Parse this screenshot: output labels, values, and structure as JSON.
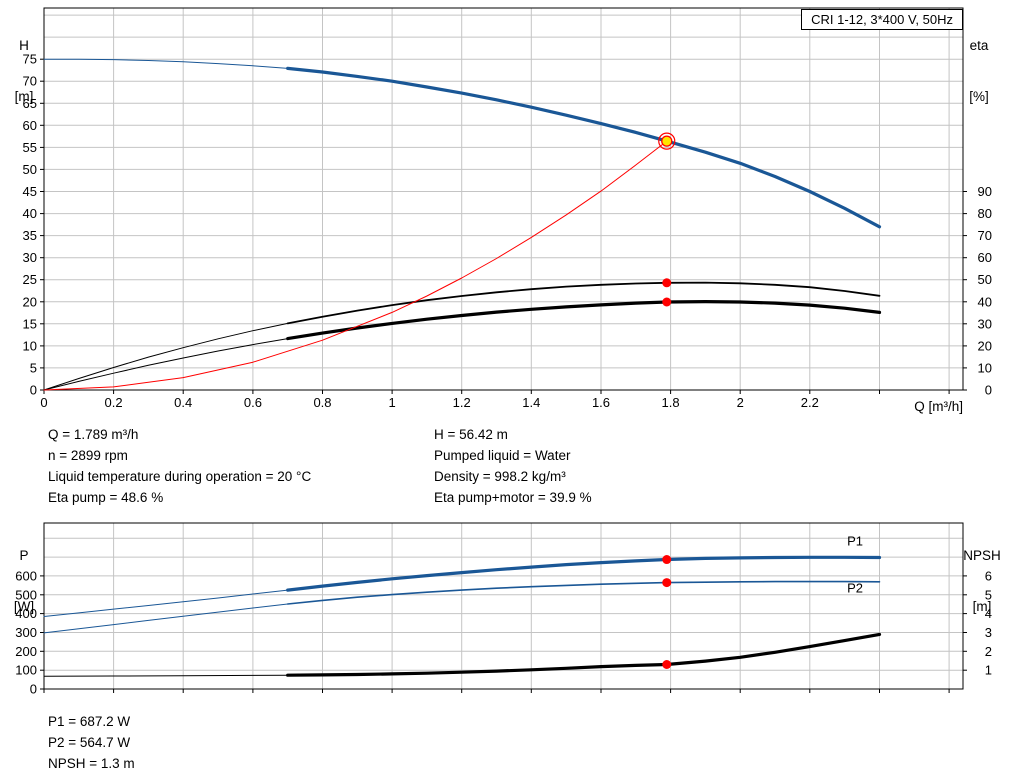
{
  "title_box": "CRI 1-12, 3*400 V, 50Hz",
  "colors": {
    "curve_blue": "#1a5796",
    "curve_black": "#000000",
    "curve_red": "#ff0000",
    "grid": "#c4c4c4",
    "marker_red": "#ff0000",
    "duty_yellow": "#ffe600"
  },
  "top_info": {
    "left": [
      "Q = 1.789 m³/h",
      "n = 2899 rpm",
      "Liquid temperature during operation = 20 °C",
      "Eta pump = 48.6 %"
    ],
    "right": [
      "H = 56.42 m",
      "Pumped liquid = Water",
      "Density = 998.2 kg/m³",
      "Eta pump+motor = 39.9 %"
    ]
  },
  "bottom_info": [
    "P1 = 687.2 W",
    "P2 = 564.7 W",
    "NPSH = 1.3 m"
  ],
  "chart_data": [
    {
      "type": "line",
      "title": "CRI 1-12, 3*400 V, 50Hz",
      "grid_color": "#c4c4c4",
      "x": {
        "label": "Q [m³/h]",
        "min": 0,
        "max": 2.64,
        "tick_step": 0.2,
        "labeled_min": 0,
        "labeled_max": 2.2
      },
      "y_left": {
        "name": "H",
        "unit": "[m]",
        "min": 0,
        "max": 86.6,
        "tick_step": 5,
        "labeled_min": 0,
        "labeled_max": 75
      },
      "y_right": {
        "name": "eta",
        "unit": "[%]",
        "min": 0,
        "max": 173.2,
        "tick_step": 10,
        "labeled_min": 0,
        "labeled_max": 90
      },
      "series": [
        {
          "name": "head-curve",
          "axis": "left",
          "color": "#1a5796",
          "split_q": 0.7,
          "width_thin": 1,
          "width_thick": 3.2,
          "points": [
            [
              0,
              75
            ],
            [
              0.1,
              75
            ],
            [
              0.2,
              74.9
            ],
            [
              0.3,
              74.7
            ],
            [
              0.4,
              74.4
            ],
            [
              0.5,
              74
            ],
            [
              0.6,
              73.5
            ],
            [
              0.7,
              72.9
            ],
            [
              0.8,
              72.1
            ],
            [
              0.9,
              71.1
            ],
            [
              1,
              70
            ],
            [
              1.1,
              68.7
            ],
            [
              1.2,
              67.3
            ],
            [
              1.3,
              65.8
            ],
            [
              1.4,
              64.1
            ],
            [
              1.5,
              62.3
            ],
            [
              1.6,
              60.4
            ],
            [
              1.7,
              58.4
            ],
            [
              1.789,
              56.42
            ],
            [
              1.9,
              53.9
            ],
            [
              2,
              51.4
            ],
            [
              2.1,
              48.4
            ],
            [
              2.2,
              45
            ],
            [
              2.3,
              41.2
            ],
            [
              2.4,
              37
            ]
          ]
        },
        {
          "name": "eta-pump-curve",
          "axis": "right",
          "color": "#000000",
          "split_q": 0.7,
          "width_thin": 1,
          "width_thick": 1.8,
          "points": [
            [
              0,
              0
            ],
            [
              0.1,
              5.2
            ],
            [
              0.2,
              10.2
            ],
            [
              0.3,
              14.9
            ],
            [
              0.4,
              19.2
            ],
            [
              0.5,
              23.2
            ],
            [
              0.6,
              26.9
            ],
            [
              0.7,
              30.2
            ],
            [
              0.8,
              33.2
            ],
            [
              0.9,
              36
            ],
            [
              1,
              38.5
            ],
            [
              1.1,
              40.7
            ],
            [
              1.2,
              42.6
            ],
            [
              1.3,
              44.3
            ],
            [
              1.4,
              45.7
            ],
            [
              1.5,
              46.9
            ],
            [
              1.6,
              47.7
            ],
            [
              1.7,
              48.3
            ],
            [
              1.789,
              48.6
            ],
            [
              1.9,
              48.7
            ],
            [
              2,
              48.4
            ],
            [
              2.1,
              47.7
            ],
            [
              2.2,
              46.6
            ],
            [
              2.3,
              44.9
            ],
            [
              2.4,
              42.7
            ]
          ]
        },
        {
          "name": "eta-pump-motor-curve",
          "axis": "right",
          "color": "#000000",
          "split_q": 0.7,
          "width_thin": 1,
          "width_thick": 3.2,
          "points": [
            [
              0,
              0
            ],
            [
              0.1,
              3.9
            ],
            [
              0.2,
              7.6
            ],
            [
              0.3,
              11.2
            ],
            [
              0.4,
              14.5
            ],
            [
              0.5,
              17.7
            ],
            [
              0.6,
              20.6
            ],
            [
              0.7,
              23.3
            ],
            [
              0.8,
              25.8
            ],
            [
              0.9,
              28.1
            ],
            [
              1,
              30.2
            ],
            [
              1.1,
              32.1
            ],
            [
              1.2,
              33.8
            ],
            [
              1.3,
              35.3
            ],
            [
              1.4,
              36.6
            ],
            [
              1.5,
              37.7
            ],
            [
              1.6,
              38.6
            ],
            [
              1.7,
              39.4
            ],
            [
              1.789,
              39.9
            ],
            [
              1.9,
              40.1
            ],
            [
              2,
              39.9
            ],
            [
              2.1,
              39.4
            ],
            [
              2.2,
              38.5
            ],
            [
              2.3,
              37.1
            ],
            [
              2.4,
              35.2
            ]
          ]
        },
        {
          "name": "system-curve",
          "axis": "left",
          "color": "#ff0000",
          "width": 1,
          "points": [
            [
              0,
              0
            ],
            [
              0.2,
              0.7
            ],
            [
              0.4,
              2.8
            ],
            [
              0.6,
              6.3
            ],
            [
              0.8,
              11.3
            ],
            [
              1,
              17.6
            ],
            [
              1.1,
              21.3
            ],
            [
              1.2,
              25.4
            ],
            [
              1.3,
              29.8
            ],
            [
              1.4,
              34.6
            ],
            [
              1.5,
              39.7
            ],
            [
              1.6,
              45.1
            ],
            [
              1.7,
              51
            ],
            [
              1.789,
              56.42
            ]
          ]
        }
      ],
      "markers": [
        {
          "style": "duty",
          "q": 1.789,
          "value": 56.42,
          "axis": "left"
        },
        {
          "style": "dot",
          "q": 1.789,
          "value": 48.6,
          "axis": "right"
        },
        {
          "style": "dot",
          "q": 1.789,
          "value": 39.9,
          "axis": "right"
        }
      ],
      "labels": []
    },
    {
      "type": "line",
      "title": "",
      "grid_color": "#c4c4c4",
      "x": {
        "label": "",
        "min": 0,
        "max": 2.64,
        "tick_step": 0.2,
        "labeled_min": 0,
        "labeled_max": 2.2
      },
      "y_left": {
        "name": "P",
        "unit": "[W]",
        "min": 0,
        "max": 881,
        "tick_step": 100,
        "labeled_min": 0,
        "labeled_max": 600
      },
      "y_right": {
        "name": "NPSH",
        "unit": "[m]",
        "min": 0,
        "max": 8.81,
        "tick_step": 1,
        "labeled_min": 1,
        "labeled_max": 6
      },
      "series": [
        {
          "name": "p1-curve",
          "axis": "left",
          "color": "#1a5796",
          "split_q": 0.7,
          "width_thin": 1,
          "width_thick": 3.2,
          "points": [
            [
              0,
              385
            ],
            [
              0.1,
              404
            ],
            [
              0.2,
              424
            ],
            [
              0.3,
              443
            ],
            [
              0.4,
              463
            ],
            [
              0.5,
              483
            ],
            [
              0.6,
              504
            ],
            [
              0.7,
              525
            ],
            [
              0.8,
              546
            ],
            [
              0.9,
              566
            ],
            [
              1,
              585
            ],
            [
              1.1,
              602
            ],
            [
              1.2,
              618
            ],
            [
              1.3,
              633
            ],
            [
              1.4,
              647
            ],
            [
              1.5,
              660
            ],
            [
              1.6,
              671
            ],
            [
              1.7,
              680
            ],
            [
              1.789,
              687.2
            ],
            [
              1.9,
              693
            ],
            [
              2,
              696
            ],
            [
              2.1,
              698
            ],
            [
              2.2,
              699
            ],
            [
              2.3,
              699
            ],
            [
              2.4,
              698
            ]
          ]
        },
        {
          "name": "p2-curve",
          "axis": "left",
          "color": "#1a5796",
          "split_q": 0.7,
          "width_thin": 1,
          "width_thick": 1.6,
          "points": [
            [
              0,
              298
            ],
            [
              0.1,
              320
            ],
            [
              0.2,
              342
            ],
            [
              0.3,
              364
            ],
            [
              0.4,
              386
            ],
            [
              0.5,
              408
            ],
            [
              0.6,
              430
            ],
            [
              0.7,
              451
            ],
            [
              0.8,
              470
            ],
            [
              0.9,
              487
            ],
            [
              1,
              501
            ],
            [
              1.1,
              514
            ],
            [
              1.2,
              525
            ],
            [
              1.3,
              535
            ],
            [
              1.4,
              543
            ],
            [
              1.5,
              550
            ],
            [
              1.6,
              556
            ],
            [
              1.7,
              561
            ],
            [
              1.789,
              564.7
            ],
            [
              1.9,
              567
            ],
            [
              2,
              569
            ],
            [
              2.1,
              570
            ],
            [
              2.2,
              570
            ],
            [
              2.3,
              570
            ],
            [
              2.4,
              569
            ]
          ]
        },
        {
          "name": "npsh-curve",
          "axis": "right",
          "color": "#000000",
          "split_q": 0.7,
          "width_thin": 1,
          "width_thick": 3.2,
          "points": [
            [
              0,
              0.68
            ],
            [
              0.2,
              0.69
            ],
            [
              0.4,
              0.7
            ],
            [
              0.6,
              0.72
            ],
            [
              0.7,
              0.73
            ],
            [
              0.8,
              0.75
            ],
            [
              0.9,
              0.77
            ],
            [
              1,
              0.8
            ],
            [
              1.1,
              0.84
            ],
            [
              1.2,
              0.89
            ],
            [
              1.3,
              0.95
            ],
            [
              1.4,
              1.02
            ],
            [
              1.5,
              1.1
            ],
            [
              1.6,
              1.19
            ],
            [
              1.7,
              1.25
            ],
            [
              1.789,
              1.3
            ],
            [
              1.9,
              1.48
            ],
            [
              2,
              1.68
            ],
            [
              2.1,
              1.95
            ],
            [
              2.2,
              2.25
            ],
            [
              2.3,
              2.57
            ],
            [
              2.4,
              2.9
            ]
          ]
        }
      ],
      "markers": [
        {
          "style": "dot",
          "q": 1.789,
          "value": 687.2,
          "axis": "left"
        },
        {
          "style": "dot",
          "q": 1.789,
          "value": 564.7,
          "axis": "left"
        },
        {
          "style": "dot",
          "q": 1.789,
          "value": 1.3,
          "axis": "right"
        }
      ],
      "labels": [
        {
          "text": "P1",
          "q": 2.33,
          "value": 762,
          "axis": "left",
          "color": "#1a5796"
        },
        {
          "text": "P2",
          "q": 2.33,
          "value": 512,
          "axis": "left",
          "color": "#1a5796"
        }
      ]
    }
  ]
}
